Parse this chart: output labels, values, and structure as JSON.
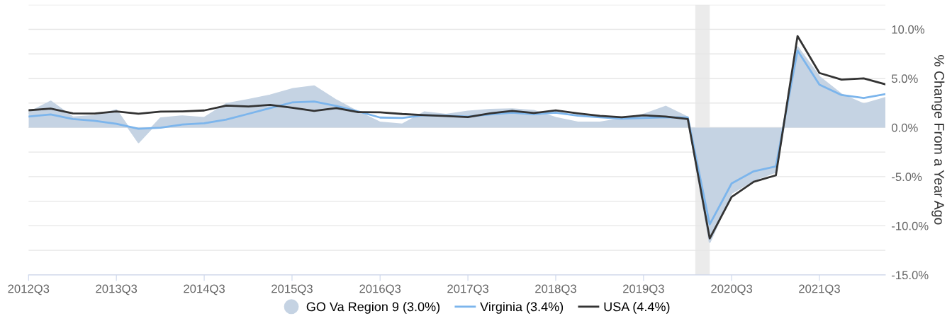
{
  "chart_data": {
    "type": "line",
    "y2label": "% Change From a Year Ago",
    "x": [
      "2012-07-01",
      "2012-10-01",
      "2013-01-01",
      "2013-04-01",
      "2013-07-01",
      "2013-10-01",
      "2014-01-01",
      "2014-04-01",
      "2014-07-01",
      "2014-10-01",
      "2015-01-01",
      "2015-04-01",
      "2015-07-01",
      "2015-10-01",
      "2016-01-01",
      "2016-04-01",
      "2016-07-01",
      "2016-10-01",
      "2017-01-01",
      "2017-04-01",
      "2017-07-01",
      "2017-10-01",
      "2018-01-01",
      "2018-04-01",
      "2018-07-01",
      "2018-10-01",
      "2019-01-01",
      "2019-04-01",
      "2019-07-01",
      "2019-10-01",
      "2020-01-01",
      "2020-04-01",
      "2020-07-01",
      "2020-10-01",
      "2021-01-01",
      "2021-04-01",
      "2021-07-01",
      "2021-10-01",
      "2022-01-01",
      "2022-04-01"
    ],
    "series": [
      {
        "name": "GO Va Region 9 (3.0%)",
        "type": "area",
        "color": "#c5d3e3",
        "axis": "y2",
        "values": [
          1.5,
          2.64,
          1.02,
          1.17,
          1.76,
          -1.48,
          0.93,
          1.14,
          0.98,
          2.4,
          2.81,
          3.26,
          3.9,
          4.19,
          2.76,
          1.57,
          0.5,
          0.31,
          1.55,
          1.29,
          1.62,
          1.81,
          1.86,
          1.69,
          0.98,
          0.5,
          0.5,
          0.86,
          1.31,
          2.12,
          1.02,
          -11.64,
          -6.64,
          -5.33,
          -4.5,
          8.17,
          5.14,
          3.36,
          2.36,
          3.0
        ]
      },
      {
        "name": "Virginia (3.4%)",
        "color": "#7cb5ec",
        "axis": "y2",
        "values": [
          1.12,
          1.33,
          0.86,
          0.69,
          0.38,
          -0.12,
          -0.02,
          0.31,
          0.43,
          0.81,
          1.4,
          1.98,
          2.55,
          2.64,
          2.2,
          1.64,
          1.02,
          0.98,
          1.26,
          1.21,
          1.12,
          1.33,
          1.52,
          1.36,
          1.52,
          1.21,
          1.05,
          0.9,
          0.98,
          1.05,
          1.02,
          -9.86,
          -5.69,
          -4.45,
          -3.95,
          7.83,
          4.36,
          3.31,
          3.0,
          3.4
        ]
      },
      {
        "name": "USA (4.4%)",
        "color": "#333333",
        "axis": "y2",
        "values": [
          1.76,
          1.93,
          1.45,
          1.43,
          1.64,
          1.4,
          1.62,
          1.64,
          1.74,
          2.24,
          2.14,
          2.31,
          2.02,
          1.69,
          1.98,
          1.57,
          1.55,
          1.38,
          1.26,
          1.17,
          1.07,
          1.45,
          1.69,
          1.48,
          1.74,
          1.45,
          1.19,
          1.05,
          1.24,
          1.12,
          0.86,
          -11.29,
          -7.07,
          -5.52,
          -4.86,
          9.31,
          5.55,
          4.88,
          5.0,
          4.4
        ]
      }
    ],
    "xlim": [
      "2012-07-01",
      "2022-04-01"
    ],
    "xticks": [
      {
        "value": "2012-07-01",
        "label": "2012Q3"
      },
      {
        "value": "2013-07-01",
        "label": "2013Q3"
      },
      {
        "value": "2014-07-01",
        "label": "2014Q3"
      },
      {
        "value": "2015-07-01",
        "label": "2015Q3"
      },
      {
        "value": "2016-07-01",
        "label": "2016Q3"
      },
      {
        "value": "2017-07-01",
        "label": "2017Q3"
      },
      {
        "value": "2018-07-01",
        "label": "2018Q3"
      },
      {
        "value": "2019-07-01",
        "label": "2019Q3"
      },
      {
        "value": "2020-07-01",
        "label": "2020Q3"
      },
      {
        "value": "2021-07-01",
        "label": "2021Q3"
      }
    ],
    "y2lim": [
      -15,
      12.5
    ],
    "y2ticks": [
      {
        "value": -15,
        "label": "-15.0%"
      },
      {
        "value": -12.5,
        "label": null
      },
      {
        "value": -10,
        "label": "-10.0%"
      },
      {
        "value": -7.5,
        "label": null
      },
      {
        "value": -5,
        "label": "-5.0%"
      },
      {
        "value": -2.5,
        "label": null
      },
      {
        "value": 0,
        "label": "0.0%"
      },
      {
        "value": 2.5,
        "label": null
      },
      {
        "value": 5,
        "label": "5.0%"
      },
      {
        "value": 7.5,
        "label": null
      },
      {
        "value": 10,
        "label": "10.0%"
      },
      {
        "value": 12.5,
        "label": null
      }
    ],
    "bands": [
      {
        "axis": "x",
        "from": "2020-02-01",
        "to": "2020-04-01",
        "color": "#ebebeb"
      }
    ],
    "grid": "y",
    "legend": "bottom",
    "marker": "none",
    "line_style": "solid"
  }
}
